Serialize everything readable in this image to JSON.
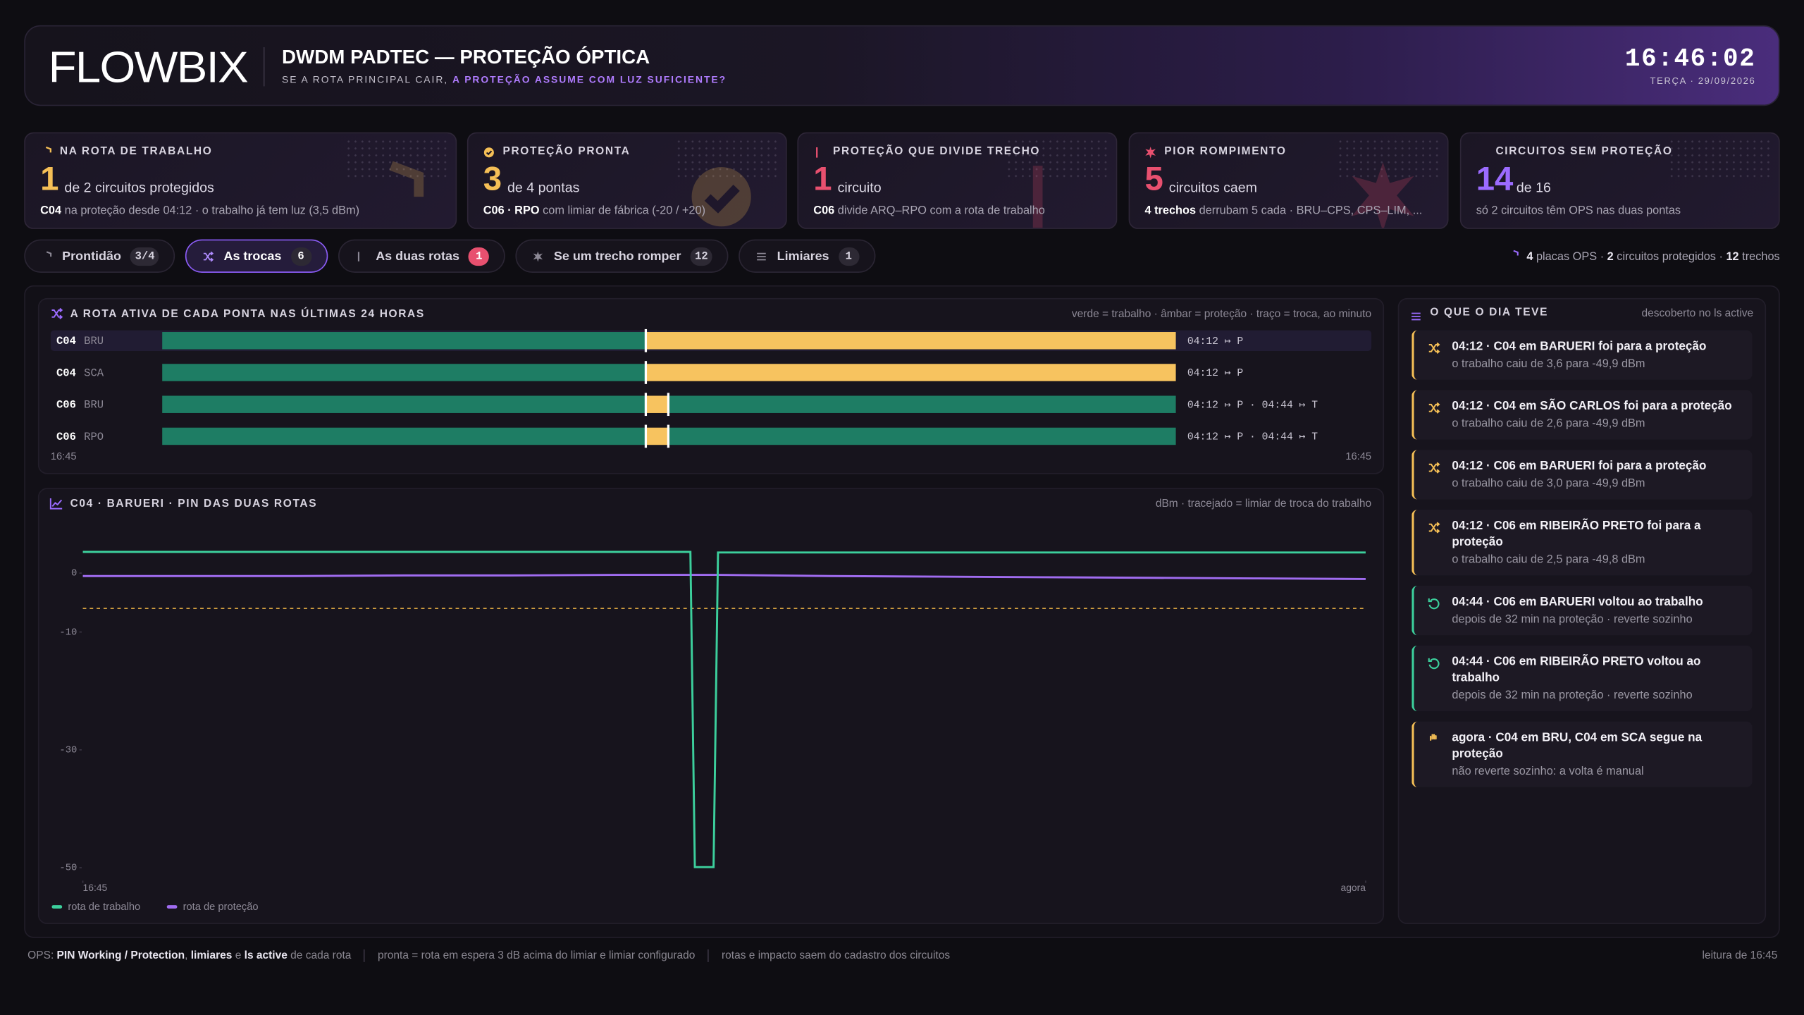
{
  "header": {
    "logo": "FLOWBIX",
    "title": "DWDM PADTEC — PROTEÇÃO ÓPTICA",
    "subtitle": "SE A ROTA PRINCIPAL CAIR, ",
    "subtitle_highlight": "A PROTEÇÃO ASSUME COM LUZ SUFICIENTE?",
    "clock": "16:46:02",
    "date": "TERÇA · 29/09/2026"
  },
  "kpis": [
    {
      "icon": "shield",
      "label": "NA ROTA DE TRABALHO",
      "value": 1,
      "unit": "de 2 circuitos protegidos",
      "detail_bold": "C04",
      "detail": " na proteção desde 04:12 · o trabalho já tem luz (3,5 dBm)",
      "color": "#f5bf56"
    },
    {
      "icon": "check",
      "label": "PROTEÇÃO PRONTA",
      "value": 3,
      "unit": "de 4 pontas",
      "detail_bold": "C06 · RPO",
      "detail": " com limiar de fábrica (-20 / +20)",
      "color": "#f5bf56"
    },
    {
      "icon": "branch",
      "label": "PROTEÇÃO QUE DIVIDE TRECHO",
      "value": 1,
      "unit": "circuito",
      "detail_bold": "C06",
      "detail": " divide ARQ–RPO com a rota de trabalho",
      "color": "#e8506f"
    },
    {
      "icon": "burst",
      "label": "PIOR ROMPIMENTO",
      "value": 5,
      "unit": "circuitos caem",
      "detail_bold": "4 trechos",
      "detail": " derrubam 5 cada · BRU–CPS, CPS–LIM, ...",
      "color": "#e8506f"
    },
    {
      "icon": "unlink",
      "label": "CIRCUITOS SEM PROTEÇÃO",
      "value": 14,
      "unit": "de 16",
      "detail": "só 2 circuitos têm OPS nas duas pontas",
      "color": "#9b6bff"
    }
  ],
  "tabs": [
    {
      "icon": "shield",
      "label": "Prontidão",
      "badge": "3/4"
    },
    {
      "icon": "switch",
      "label": "As trocas",
      "badge": 6,
      "active": true
    },
    {
      "icon": "branch",
      "label": "As duas rotas",
      "badge": 1,
      "badge_color": "#e8506f"
    },
    {
      "icon": "burst",
      "label": "Se um trecho romper",
      "badge": 12
    },
    {
      "icon": "sliders",
      "label": "Limiares",
      "badge": 1
    }
  ],
  "summary": [
    {
      "value": 4,
      "text": " placas OPS · "
    },
    {
      "value": 2,
      "text": " circuitos protegidos · "
    },
    {
      "value": 12,
      "text": " trechos"
    }
  ],
  "timeline": {
    "title": "A ROTA ATIVA DE CADA PONTA NAS ÚLTIMAS 24 HORAS",
    "note": "verde = trabalho · âmbar = proteção · traço = troca, ao minuto",
    "xlim": [
      0,
      1440
    ],
    "xticks": [
      {
        "value": 0,
        "label": "16:45"
      },
      {
        "value": 1440,
        "label": "16:45"
      }
    ],
    "rows": [
      {
        "circuit": "C04",
        "site": "BRU",
        "status": "04:12 ↦ P",
        "highlight": true,
        "segments": [
          {
            "start": 0,
            "end": 687,
            "color": "#1e7d64"
          },
          {
            "start": 687,
            "end": 1440,
            "color": "#f7c35f"
          }
        ]
      },
      {
        "circuit": "C04",
        "site": "SCA",
        "status": "04:12 ↦ P",
        "segments": [
          {
            "start": 0,
            "end": 687,
            "color": "#1e7d64"
          },
          {
            "start": 687,
            "end": 1440,
            "color": "#f7c35f"
          }
        ]
      },
      {
        "circuit": "C06",
        "site": "BRU",
        "status": "04:12 ↦ P · 04:44 ↦ T",
        "segments": [
          {
            "start": 0,
            "end": 687,
            "color": "#1e7d64"
          },
          {
            "start": 687,
            "end": 719,
            "color": "#f7c35f"
          },
          {
            "start": 719,
            "end": 1440,
            "color": "#1e7d64"
          }
        ]
      },
      {
        "circuit": "C06",
        "site": "RPO",
        "status": "04:12 ↦ P · 04:44 ↦ T",
        "segments": [
          {
            "start": 0,
            "end": 687,
            "color": "#1e7d64"
          },
          {
            "start": 687,
            "end": 719,
            "color": "#f7c35f"
          },
          {
            "start": 719,
            "end": 1440,
            "color": "#1e7d64"
          }
        ]
      }
    ]
  },
  "chart": {
    "type": "line",
    "title": "C04 · BARUERI · PIN DAS DUAS ROTAS",
    "note": "dBm · tracejado = limiar de troca do trabalho",
    "xlim": [
      0,
      1440
    ],
    "xticks": [
      {
        "value": 0,
        "label": "16:45"
      },
      {
        "value": 1440,
        "label": "agora"
      }
    ],
    "ylim": [
      -52,
      8
    ],
    "yticks": [
      0,
      -10,
      -30,
      -50
    ],
    "threshold": -6,
    "threshold_color": "#d9a441",
    "x": [
      0,
      120,
      240,
      360,
      480,
      600,
      682,
      687,
      708,
      713,
      840,
      960,
      1080,
      1200,
      1320,
      1440
    ],
    "series": [
      {
        "name": "rota de trabalho",
        "color": "#3ccf9c",
        "values": [
          3.6,
          3.6,
          3.6,
          3.6,
          3.6,
          3.6,
          3.6,
          -49.9,
          -49.9,
          3.5,
          3.5,
          3.5,
          3.5,
          3.5,
          3.5,
          3.5
        ]
      },
      {
        "name": "rota de proteção",
        "color": "#a06cf0",
        "values": [
          -0.5,
          -0.5,
          -0.5,
          -0.4,
          -0.4,
          -0.3,
          -0.3,
          -0.3,
          -0.3,
          -0.3,
          -0.5,
          -0.6,
          -0.7,
          -0.8,
          -0.9,
          -1.0
        ]
      }
    ]
  },
  "events": {
    "title": "O QUE O DIA TEVE",
    "note": "descoberto no ls active",
    "items": [
      {
        "icon": "switch",
        "color": "#f5bf56",
        "title": "04:12 · C04 em BARUERI foi para a proteção",
        "detail": "o trabalho caiu de 3,6 para -49,9 dBm"
      },
      {
        "icon": "switch",
        "color": "#f5bf56",
        "title": "04:12 · C04 em SÃO CARLOS foi para a proteção",
        "detail": "o trabalho caiu de 2,6 para -49,9 dBm"
      },
      {
        "icon": "switch",
        "color": "#f5bf56",
        "title": "04:12 · C06 em BARUERI foi para a proteção",
        "detail": "o trabalho caiu de 3,0 para -49,9 dBm"
      },
      {
        "icon": "switch",
        "color": "#f5bf56",
        "title": "04:12 · C06 em RIBEIRÃO PRETO foi para a proteção",
        "detail": "o trabalho caiu de 2,5 para -49,8 dBm"
      },
      {
        "icon": "revert",
        "color": "#3ccf9c",
        "title": "04:44 · C06 em BARUERI voltou ao trabalho",
        "detail": "depois de 32 min na proteção · reverte sozinho"
      },
      {
        "icon": "revert",
        "color": "#3ccf9c",
        "title": "04:44 · C06 em RIBEIRÃO PRETO voltou ao trabalho",
        "detail": "depois de 32 min na proteção · reverte sozinho"
      },
      {
        "icon": "hand",
        "color": "#f5bf56",
        "title": "agora · C04 em BRU, C04 em SCA segue na proteção",
        "detail": "não reverte sozinho: a volta é manual"
      }
    ]
  },
  "footer": {
    "parts": [
      {
        "text": "OPS: "
      },
      {
        "text": "PIN Working / Protection",
        "bold": true
      },
      {
        "text": ", "
      },
      {
        "text": "limiares",
        "bold": true
      },
      {
        "text": " e "
      },
      {
        "text": "ls active",
        "bold": true
      },
      {
        "text": " de cada rota"
      }
    ],
    "notes": [
      "pronta = rota em espera 3 dB acima do limiar e limiar configurado",
      "rotas e impacto saem do cadastro dos circuitos"
    ],
    "right": "leitura de 16:45"
  }
}
